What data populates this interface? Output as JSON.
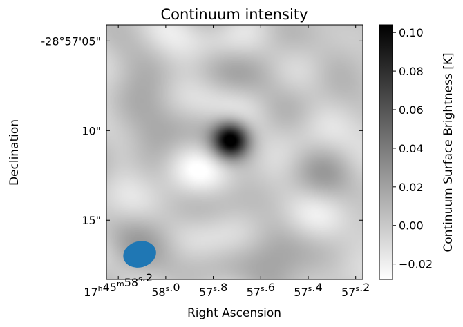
{
  "chart_data": {
    "type": "heatmap",
    "title": "Continuum intensity",
    "xlabel": "Right Ascension",
    "ylabel": "Declination",
    "colorbar": {
      "label": "Continuum Surface Brightness [K]",
      "range": [
        -0.028,
        0.104
      ],
      "ticks": [
        -0.02,
        0.0,
        0.02,
        0.04,
        0.06,
        0.08,
        0.1
      ],
      "tick_labels": [
        "−0.02",
        "0.00",
        "0.02",
        "0.04",
        "0.06",
        "0.08",
        "0.10"
      ],
      "colormap": "gray_r"
    },
    "x_ticks": [
      {
        "h": "17",
        "m": "45",
        "s": "58",
        "frac": ".2",
        "value_s": 58.2
      },
      {
        "h": "",
        "m": "",
        "s": "58",
        "frac": ".0",
        "value_s": 58.0
      },
      {
        "h": "",
        "m": "",
        "s": "57",
        "frac": ".8",
        "value_s": 57.8
      },
      {
        "h": "",
        "m": "",
        "s": "57",
        "frac": ".6",
        "value_s": 57.6
      },
      {
        "h": "",
        "m": "",
        "s": "57",
        "frac": ".4",
        "value_s": 57.4
      },
      {
        "h": "",
        "m": "",
        "s": "57",
        "frac": ".2",
        "value_s": 57.2
      }
    ],
    "y_ticks": [
      {
        "label": "-28°57'05\"",
        "value_arcsec": 5
      },
      {
        "label": "10\"",
        "value_arcsec": 10
      },
      {
        "label": "15\"",
        "value_arcsec": 15
      }
    ],
    "source": {
      "ra_s": 57.73,
      "dec_arcsec": 10.5,
      "peak_K": 0.104,
      "fwhm_arcsec": 1.6
    },
    "beam": {
      "ra_s": 58.11,
      "dec_arcsec": 16.9,
      "major_arcsec": 1.85,
      "minor_arcsec": 1.45,
      "color": "#1f77b4"
    },
    "field": {
      "ra_range_s": [
        58.25,
        57.17
      ],
      "dec_range_arcsec": [
        4.1,
        18.3
      ]
    }
  }
}
